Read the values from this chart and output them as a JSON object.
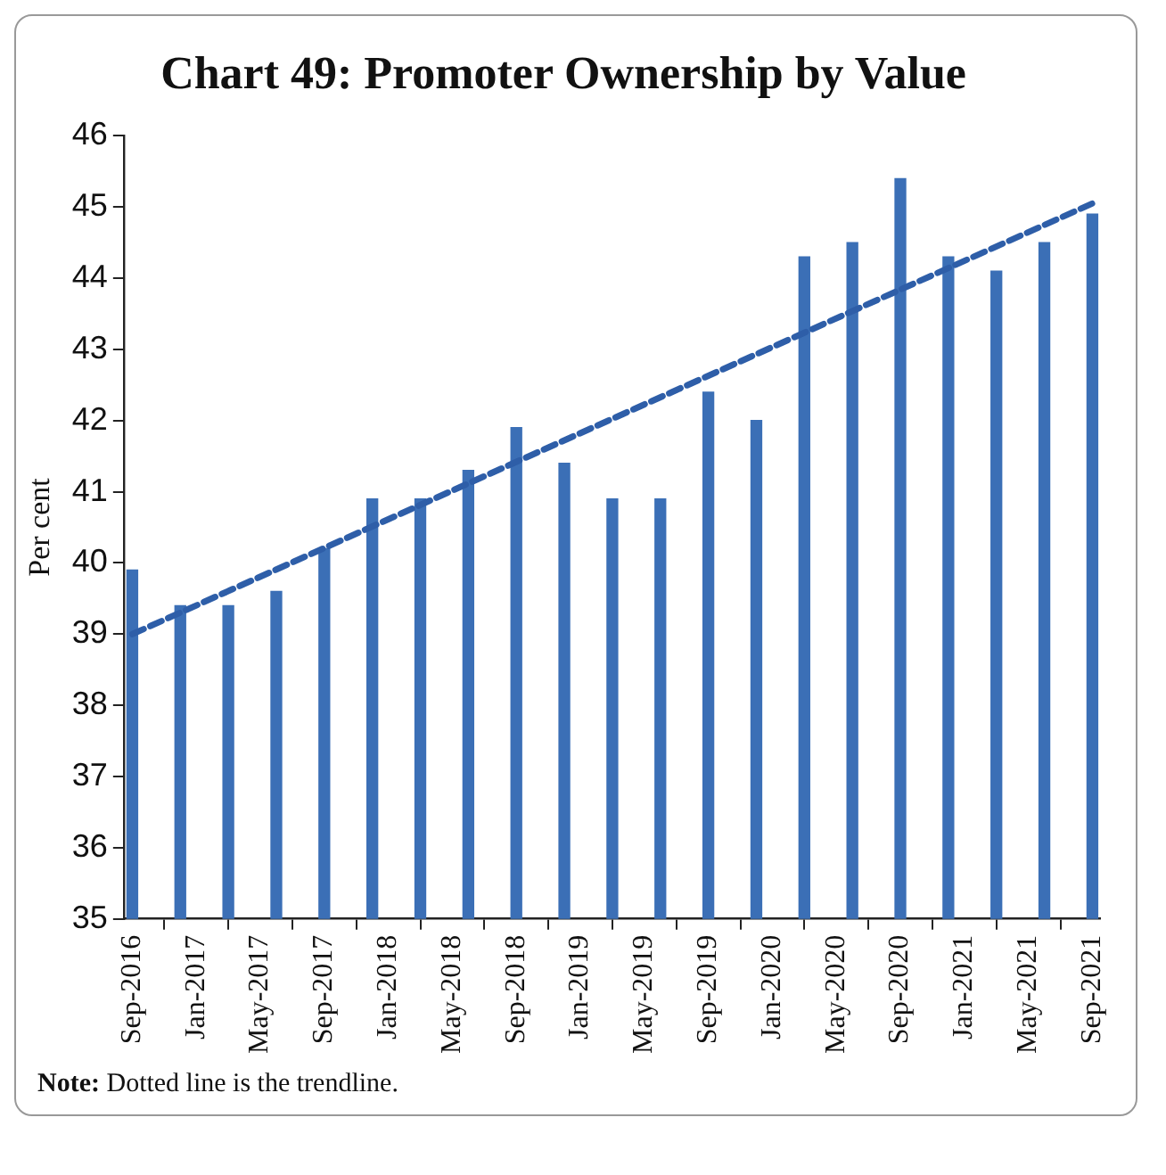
{
  "chart_data": {
    "type": "bar",
    "title": "Chart 49: Promoter Ownership by Value",
    "ylabel": "Per cent",
    "x": [
      "2016-09",
      "2016-12",
      "2017-03",
      "2017-06",
      "2017-09",
      "2017-12",
      "2018-03",
      "2018-06",
      "2018-09",
      "2018-12",
      "2019-03",
      "2019-06",
      "2019-09",
      "2019-12",
      "2020-03",
      "2020-06",
      "2020-09",
      "2020-12",
      "2021-03",
      "2021-06",
      "2021-09"
    ],
    "series": [
      {
        "color": "#3b6fb6",
        "values": [
          39.9,
          39.4,
          39.4,
          39.6,
          40.2,
          40.9,
          40.9,
          41.3,
          41.9,
          41.4,
          40.9,
          40.9,
          42.4,
          42.0,
          44.3,
          44.5,
          45.4,
          44.3,
          44.1,
          44.5,
          44.9
        ]
      },
      {
        "type": "line",
        "color": "#2e5ea8",
        "line_style": "dashed",
        "x": [
          "2016-09",
          "2021-09"
        ],
        "values": [
          39.0,
          45.05
        ]
      }
    ],
    "xlim": [
      "2016-08-15",
      "2021-09-15"
    ],
    "xticks": [
      {
        "value": "2016-09",
        "label": "Sep-2016"
      },
      {
        "value": "2017-01",
        "label": "Jan-2017"
      },
      {
        "value": "2017-05",
        "label": "May-2017"
      },
      {
        "value": "2017-09",
        "label": "Sep-2017"
      },
      {
        "value": "2018-01",
        "label": "Jan-2018"
      },
      {
        "value": "2018-05",
        "label": "May-2018"
      },
      {
        "value": "2018-09",
        "label": "Sep-2018"
      },
      {
        "value": "2019-01",
        "label": "Jan-2019"
      },
      {
        "value": "2019-05",
        "label": "May-2019"
      },
      {
        "value": "2019-09",
        "label": "Sep-2019"
      },
      {
        "value": "2020-01",
        "label": "Jan-2020"
      },
      {
        "value": "2020-05",
        "label": "May-2020"
      },
      {
        "value": "2020-09",
        "label": "Sep-2020"
      },
      {
        "value": "2021-01",
        "label": "Jan-2021"
      },
      {
        "value": "2021-05",
        "label": "May-2021"
      },
      {
        "value": "2021-09",
        "label": "Sep-2021"
      }
    ],
    "ylim": [
      35,
      46
    ],
    "yticks": [
      35,
      36,
      37,
      38,
      39,
      40,
      41,
      42,
      43,
      44,
      45,
      46
    ],
    "grid": false,
    "legend": false,
    "annotations": [
      "Note: Dotted line is the trendline."
    ]
  }
}
